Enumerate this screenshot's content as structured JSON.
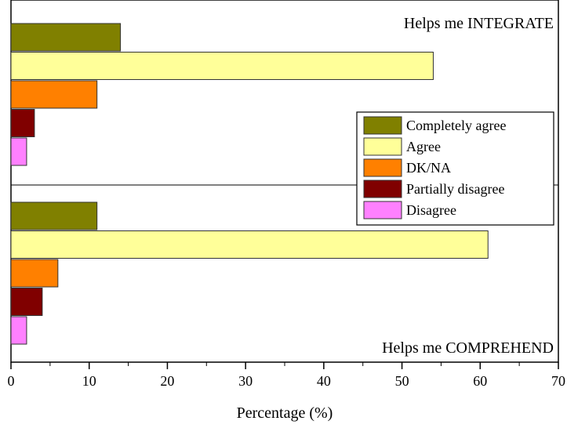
{
  "chart_data": {
    "type": "bar",
    "orientation": "horizontal",
    "xlabel": "Percentage (%)",
    "xlim": [
      0,
      70
    ],
    "xticks": [
      0,
      10,
      20,
      30,
      40,
      50,
      60,
      70
    ],
    "grid": false,
    "legend_position": "right",
    "series": [
      {
        "name": "Completely agree",
        "color": "#808000"
      },
      {
        "name": "Agree",
        "color": "#FFFF99"
      },
      {
        "name": "DK/NA",
        "color": "#FF8000"
      },
      {
        "name": "Partially disagree",
        "color": "#800000"
      },
      {
        "name": "Disagree",
        "color": "#FF80FF"
      }
    ],
    "panels": [
      {
        "label": "Helps me INTEGRATE",
        "values": [
          14,
          54,
          11,
          3,
          2
        ]
      },
      {
        "label": "Helps me COMPREHEND",
        "values": [
          11,
          61,
          6,
          4,
          2
        ]
      }
    ]
  }
}
